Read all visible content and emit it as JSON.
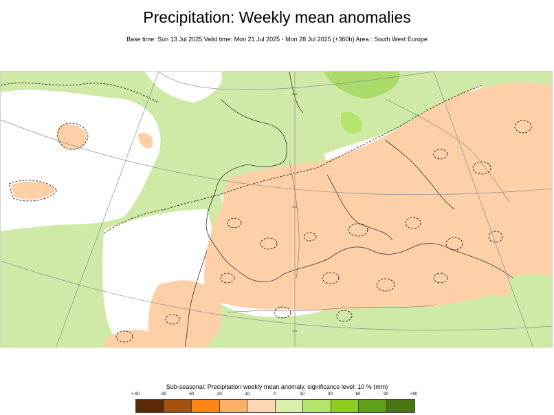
{
  "title": "Precipitation: Weekly mean anomalies",
  "subtitle": "Base time: Sun 13 Jul 2025 Valid time: Mon 21 Jul 2025 - Mon 28 Jul 2025 (+360h) Area : South West Europe",
  "map": {
    "region": "South West Europe",
    "colors": {
      "ocean": "#cfeaa7",
      "neutral": "#ffffff",
      "dry": "#fdd0a8",
      "wet": "#a9da6a",
      "wet_strong": "#8ccc3a"
    },
    "grid_labels": [
      "40N",
      "50N",
      "30N"
    ]
  },
  "legend": {
    "title": "Sub-seasonal: Precipitation weekly mean anomaly, significance level: 10 % (mm)",
    "ticks": [
      "<-90",
      "-90",
      "-60",
      "-30",
      "-10",
      "0",
      "10",
      "30",
      "60",
      "90",
      ">90"
    ],
    "colors": [
      "#5a2a06",
      "#a6520e",
      "#ff8411",
      "#ffb066",
      "#ffd8b3",
      "#d9f0aa",
      "#b4e46a",
      "#8ccc1e",
      "#5fa016",
      "#4a7710"
    ]
  }
}
